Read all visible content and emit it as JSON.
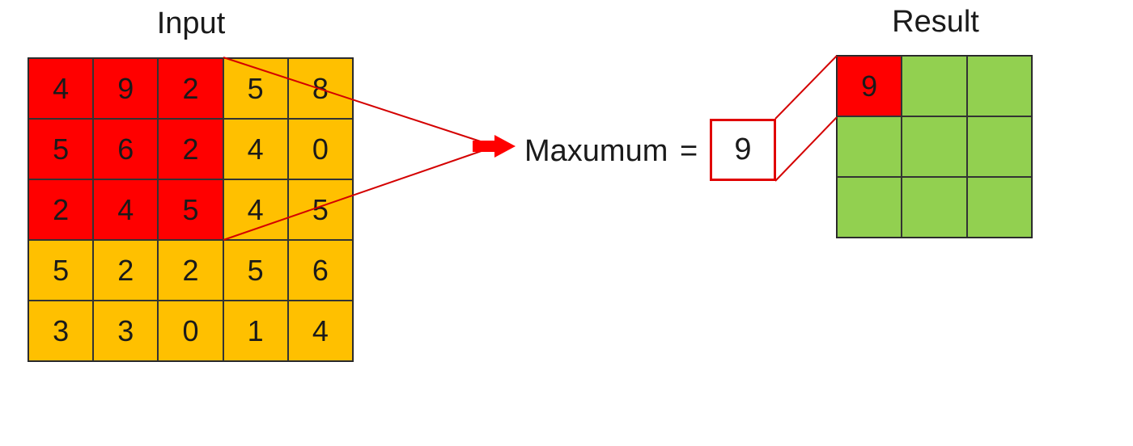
{
  "input": {
    "title": "Input",
    "cells": [
      [
        "4",
        "9",
        "2",
        "5",
        "8"
      ],
      [
        "5",
        "6",
        "2",
        "4",
        "0"
      ],
      [
        "2",
        "4",
        "5",
        "4",
        "5"
      ],
      [
        "5",
        "2",
        "2",
        "5",
        "6"
      ],
      [
        "3",
        "3",
        "0",
        "1",
        "4"
      ]
    ],
    "window_rows": 3,
    "window_cols": 3
  },
  "operation": {
    "label": "Maxumum",
    "equals": "=",
    "value": "9"
  },
  "result": {
    "title": "Result",
    "cells": [
      [
        "9",
        "",
        ""
      ],
      [
        "",
        "",
        ""
      ],
      [
        "",
        "",
        ""
      ]
    ]
  },
  "colors": {
    "window": "#ff0000",
    "input_cell": "#ffc000",
    "result_cell": "#92d050",
    "connector": "#e00000"
  }
}
